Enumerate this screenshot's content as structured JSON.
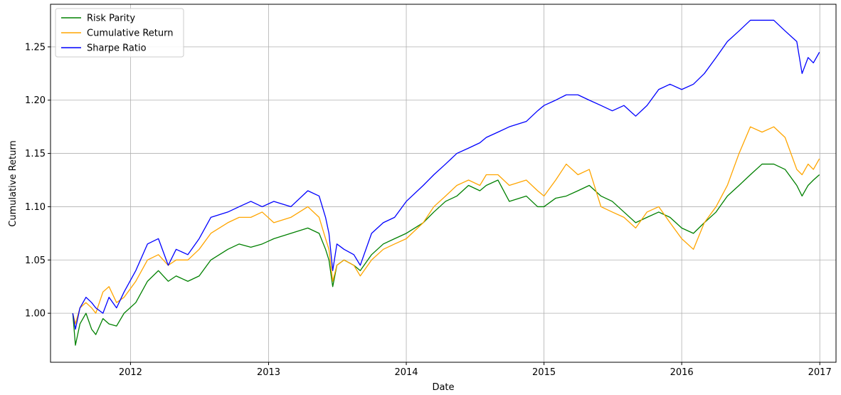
{
  "chart_data": {
    "type": "line",
    "title": "",
    "xlabel": "Date",
    "ylabel": "Cumulative Return",
    "xlim": [
      "2011-06-03",
      "2017-02-13"
    ],
    "ylim": [
      0.954,
      1.29
    ],
    "grid": true,
    "legend_position": "top-left",
    "x_ticks": [
      "2012",
      "2013",
      "2014",
      "2015",
      "2016",
      "2017"
    ],
    "x_tick_dates": [
      "2012-01-01",
      "2013-01-01",
      "2014-01-01",
      "2015-01-01",
      "2016-01-01",
      "2017-01-01"
    ],
    "y_ticks": [
      "1.00",
      "1.05",
      "1.10",
      "1.15",
      "1.20",
      "1.25"
    ],
    "y_tick_values": [
      1.0,
      1.05,
      1.1,
      1.15,
      1.2,
      1.25
    ],
    "series": [
      {
        "name": "Risk Parity",
        "color": "#008000",
        "points": [
          [
            "2011-08-01",
            1.0
          ],
          [
            "2011-08-08",
            0.97
          ],
          [
            "2011-08-20",
            0.99
          ],
          [
            "2011-09-05",
            1.0
          ],
          [
            "2011-09-20",
            0.985
          ],
          [
            "2011-10-01",
            0.98
          ],
          [
            "2011-10-20",
            0.995
          ],
          [
            "2011-11-05",
            0.99
          ],
          [
            "2011-11-25",
            0.988
          ],
          [
            "2011-12-15",
            1.0
          ],
          [
            "2012-01-15",
            1.01
          ],
          [
            "2012-02-15",
            1.03
          ],
          [
            "2012-03-15",
            1.04
          ],
          [
            "2012-04-10",
            1.03
          ],
          [
            "2012-05-01",
            1.035
          ],
          [
            "2012-06-01",
            1.03
          ],
          [
            "2012-07-01",
            1.035
          ],
          [
            "2012-08-01",
            1.05
          ],
          [
            "2012-09-15",
            1.06
          ],
          [
            "2012-10-15",
            1.065
          ],
          [
            "2012-11-15",
            1.062
          ],
          [
            "2012-12-15",
            1.065
          ],
          [
            "2013-01-15",
            1.07
          ],
          [
            "2013-03-01",
            1.075
          ],
          [
            "2013-04-15",
            1.08
          ],
          [
            "2013-05-15",
            1.075
          ],
          [
            "2013-06-01",
            1.06
          ],
          [
            "2013-06-10",
            1.05
          ],
          [
            "2013-06-20",
            1.025
          ],
          [
            "2013-07-01",
            1.045
          ],
          [
            "2013-07-20",
            1.05
          ],
          [
            "2013-08-15",
            1.045
          ],
          [
            "2013-09-01",
            1.04
          ],
          [
            "2013-10-01",
            1.055
          ],
          [
            "2013-11-01",
            1.065
          ],
          [
            "2013-12-01",
            1.07
          ],
          [
            "2014-01-01",
            1.075
          ],
          [
            "2014-02-15",
            1.085
          ],
          [
            "2014-03-15",
            1.095
          ],
          [
            "2014-04-15",
            1.105
          ],
          [
            "2014-05-15",
            1.11
          ],
          [
            "2014-06-15",
            1.12
          ],
          [
            "2014-07-15",
            1.115
          ],
          [
            "2014-08-01",
            1.12
          ],
          [
            "2014-09-01",
            1.125
          ],
          [
            "2014-10-01",
            1.105
          ],
          [
            "2014-11-15",
            1.11
          ],
          [
            "2014-12-15",
            1.1
          ],
          [
            "2015-01-01",
            1.1
          ],
          [
            "2015-02-01",
            1.108
          ],
          [
            "2015-03-01",
            1.11
          ],
          [
            "2015-04-01",
            1.115
          ],
          [
            "2015-05-01",
            1.12
          ],
          [
            "2015-06-01",
            1.11
          ],
          [
            "2015-07-01",
            1.105
          ],
          [
            "2015-08-01",
            1.095
          ],
          [
            "2015-09-01",
            1.085
          ],
          [
            "2015-10-01",
            1.09
          ],
          [
            "2015-11-01",
            1.095
          ],
          [
            "2015-12-01",
            1.09
          ],
          [
            "2016-01-01",
            1.08
          ],
          [
            "2016-02-01",
            1.075
          ],
          [
            "2016-03-01",
            1.085
          ],
          [
            "2016-04-01",
            1.095
          ],
          [
            "2016-05-01",
            1.11
          ],
          [
            "2016-06-01",
            1.12
          ],
          [
            "2016-07-01",
            1.13
          ],
          [
            "2016-08-01",
            1.14
          ],
          [
            "2016-09-01",
            1.14
          ],
          [
            "2016-10-01",
            1.135
          ],
          [
            "2016-11-01",
            1.12
          ],
          [
            "2016-11-15",
            1.11
          ],
          [
            "2016-12-01",
            1.12
          ],
          [
            "2016-12-15",
            1.125
          ],
          [
            "2016-12-31",
            1.13
          ]
        ]
      },
      {
        "name": "Cumulative Return",
        "color": "#ffa500",
        "points": [
          [
            "2011-08-01",
            1.0
          ],
          [
            "2011-08-08",
            0.99
          ],
          [
            "2011-08-20",
            1.005
          ],
          [
            "2011-09-05",
            1.01
          ],
          [
            "2011-09-20",
            1.005
          ],
          [
            "2011-10-01",
            1.0
          ],
          [
            "2011-10-20",
            1.02
          ],
          [
            "2011-11-05",
            1.025
          ],
          [
            "2011-11-25",
            1.01
          ],
          [
            "2011-12-15",
            1.015
          ],
          [
            "2012-01-15",
            1.03
          ],
          [
            "2012-02-15",
            1.05
          ],
          [
            "2012-03-15",
            1.055
          ],
          [
            "2012-04-10",
            1.045
          ],
          [
            "2012-05-01",
            1.05
          ],
          [
            "2012-06-01",
            1.05
          ],
          [
            "2012-07-01",
            1.06
          ],
          [
            "2012-08-01",
            1.075
          ],
          [
            "2012-09-15",
            1.085
          ],
          [
            "2012-10-15",
            1.09
          ],
          [
            "2012-11-15",
            1.09
          ],
          [
            "2012-12-15",
            1.095
          ],
          [
            "2013-01-15",
            1.085
          ],
          [
            "2013-03-01",
            1.09
          ],
          [
            "2013-04-15",
            1.1
          ],
          [
            "2013-05-15",
            1.09
          ],
          [
            "2013-06-01",
            1.07
          ],
          [
            "2013-06-10",
            1.06
          ],
          [
            "2013-06-20",
            1.03
          ],
          [
            "2013-07-01",
            1.045
          ],
          [
            "2013-07-20",
            1.05
          ],
          [
            "2013-08-15",
            1.045
          ],
          [
            "2013-09-01",
            1.035
          ],
          [
            "2013-10-01",
            1.05
          ],
          [
            "2013-11-01",
            1.06
          ],
          [
            "2013-12-01",
            1.065
          ],
          [
            "2014-01-01",
            1.07
          ],
          [
            "2014-02-15",
            1.085
          ],
          [
            "2014-03-15",
            1.1
          ],
          [
            "2014-04-15",
            1.11
          ],
          [
            "2014-05-15",
            1.12
          ],
          [
            "2014-06-15",
            1.125
          ],
          [
            "2014-07-15",
            1.12
          ],
          [
            "2014-08-01",
            1.13
          ],
          [
            "2014-09-01",
            1.13
          ],
          [
            "2014-10-01",
            1.12
          ],
          [
            "2014-11-15",
            1.125
          ],
          [
            "2014-12-15",
            1.115
          ],
          [
            "2015-01-01",
            1.11
          ],
          [
            "2015-02-01",
            1.125
          ],
          [
            "2015-03-01",
            1.14
          ],
          [
            "2015-04-01",
            1.13
          ],
          [
            "2015-05-01",
            1.135
          ],
          [
            "2015-06-01",
            1.1
          ],
          [
            "2015-07-01",
            1.095
          ],
          [
            "2015-08-01",
            1.09
          ],
          [
            "2015-09-01",
            1.08
          ],
          [
            "2015-10-01",
            1.095
          ],
          [
            "2015-11-01",
            1.1
          ],
          [
            "2015-12-01",
            1.085
          ],
          [
            "2016-01-01",
            1.07
          ],
          [
            "2016-02-01",
            1.06
          ],
          [
            "2016-03-01",
            1.085
          ],
          [
            "2016-04-01",
            1.1
          ],
          [
            "2016-05-01",
            1.12
          ],
          [
            "2016-06-01",
            1.15
          ],
          [
            "2016-07-01",
            1.175
          ],
          [
            "2016-08-01",
            1.17
          ],
          [
            "2016-09-01",
            1.175
          ],
          [
            "2016-10-01",
            1.165
          ],
          [
            "2016-11-01",
            1.135
          ],
          [
            "2016-11-15",
            1.13
          ],
          [
            "2016-12-01",
            1.14
          ],
          [
            "2016-12-15",
            1.135
          ],
          [
            "2016-12-31",
            1.145
          ]
        ]
      },
      {
        "name": "Sharpe Ratio",
        "color": "#0000ff",
        "points": [
          [
            "2011-08-01",
            1.0
          ],
          [
            "2011-08-08",
            0.985
          ],
          [
            "2011-08-20",
            1.005
          ],
          [
            "2011-09-05",
            1.015
          ],
          [
            "2011-09-20",
            1.01
          ],
          [
            "2011-10-01",
            1.005
          ],
          [
            "2011-10-20",
            1.0
          ],
          [
            "2011-11-05",
            1.015
          ],
          [
            "2011-11-25",
            1.005
          ],
          [
            "2011-12-15",
            1.02
          ],
          [
            "2012-01-15",
            1.04
          ],
          [
            "2012-02-15",
            1.065
          ],
          [
            "2012-03-15",
            1.07
          ],
          [
            "2012-04-10",
            1.045
          ],
          [
            "2012-05-01",
            1.06
          ],
          [
            "2012-06-01",
            1.055
          ],
          [
            "2012-07-01",
            1.07
          ],
          [
            "2012-08-01",
            1.09
          ],
          [
            "2012-09-15",
            1.095
          ],
          [
            "2012-10-15",
            1.1
          ],
          [
            "2012-11-15",
            1.105
          ],
          [
            "2012-12-15",
            1.1
          ],
          [
            "2013-01-15",
            1.105
          ],
          [
            "2013-03-01",
            1.1
          ],
          [
            "2013-04-15",
            1.115
          ],
          [
            "2013-05-15",
            1.11
          ],
          [
            "2013-06-01",
            1.09
          ],
          [
            "2013-06-10",
            1.075
          ],
          [
            "2013-06-20",
            1.04
          ],
          [
            "2013-07-01",
            1.065
          ],
          [
            "2013-07-20",
            1.06
          ],
          [
            "2013-08-15",
            1.055
          ],
          [
            "2013-09-01",
            1.045
          ],
          [
            "2013-10-01",
            1.075
          ],
          [
            "2013-11-01",
            1.085
          ],
          [
            "2013-12-01",
            1.09
          ],
          [
            "2014-01-01",
            1.105
          ],
          [
            "2014-02-15",
            1.12
          ],
          [
            "2014-03-15",
            1.13
          ],
          [
            "2014-04-15",
            1.14
          ],
          [
            "2014-05-15",
            1.15
          ],
          [
            "2014-06-15",
            1.155
          ],
          [
            "2014-07-15",
            1.16
          ],
          [
            "2014-08-01",
            1.165
          ],
          [
            "2014-09-01",
            1.17
          ],
          [
            "2014-10-01",
            1.175
          ],
          [
            "2014-11-15",
            1.18
          ],
          [
            "2014-12-15",
            1.19
          ],
          [
            "2015-01-01",
            1.195
          ],
          [
            "2015-02-01",
            1.2
          ],
          [
            "2015-03-01",
            1.205
          ],
          [
            "2015-04-01",
            1.205
          ],
          [
            "2015-05-01",
            1.2
          ],
          [
            "2015-06-01",
            1.195
          ],
          [
            "2015-07-01",
            1.19
          ],
          [
            "2015-08-01",
            1.195
          ],
          [
            "2015-09-01",
            1.185
          ],
          [
            "2015-10-01",
            1.195
          ],
          [
            "2015-11-01",
            1.21
          ],
          [
            "2015-12-01",
            1.215
          ],
          [
            "2016-01-01",
            1.21
          ],
          [
            "2016-02-01",
            1.215
          ],
          [
            "2016-03-01",
            1.225
          ],
          [
            "2016-04-01",
            1.24
          ],
          [
            "2016-05-01",
            1.255
          ],
          [
            "2016-06-01",
            1.265
          ],
          [
            "2016-07-01",
            1.275
          ],
          [
            "2016-08-01",
            1.275
          ],
          [
            "2016-09-01",
            1.275
          ],
          [
            "2016-10-01",
            1.265
          ],
          [
            "2016-11-01",
            1.255
          ],
          [
            "2016-11-15",
            1.225
          ],
          [
            "2016-12-01",
            1.24
          ],
          [
            "2016-12-15",
            1.235
          ],
          [
            "2016-12-31",
            1.245
          ]
        ]
      }
    ]
  }
}
